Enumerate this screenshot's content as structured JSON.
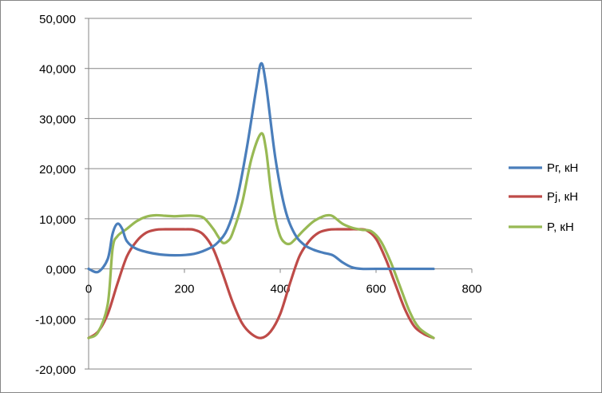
{
  "chart_data": {
    "type": "line",
    "title": "",
    "xlabel": "",
    "ylabel": "",
    "xlim": [
      0,
      800
    ],
    "ylim": [
      -20,
      50
    ],
    "x_ticks": [
      "0",
      "200",
      "400",
      "600",
      "800"
    ],
    "y_ticks": [
      "-20,000",
      "-10,000",
      "0,000",
      "10,000",
      "20,000",
      "30,000",
      "40,000",
      "50,000"
    ],
    "y_tick_values": [
      -20,
      -10,
      0,
      10,
      20,
      30,
      40,
      50
    ],
    "x_tick_values": [
      0,
      200,
      400,
      600,
      800
    ],
    "grid": {
      "horizontal": true,
      "vertical": false
    },
    "legend_position": "right",
    "series": [
      {
        "name": "Pг, кН",
        "color": "#4A7EBB",
        "points": [
          [
            0,
            0.0
          ],
          [
            20,
            -0.6
          ],
          [
            40,
            2.0
          ],
          [
            50,
            7.0
          ],
          [
            60,
            9.0
          ],
          [
            70,
            8.0
          ],
          [
            80,
            5.5
          ],
          [
            100,
            4.0
          ],
          [
            140,
            3.0
          ],
          [
            180,
            2.7
          ],
          [
            220,
            3.0
          ],
          [
            250,
            4.0
          ],
          [
            270,
            5.3
          ],
          [
            290,
            8.0
          ],
          [
            310,
            14.0
          ],
          [
            330,
            24.0
          ],
          [
            350,
            36.0
          ],
          [
            360,
            41.0
          ],
          [
            370,
            37.0
          ],
          [
            390,
            22.0
          ],
          [
            410,
            12.0
          ],
          [
            430,
            7.0
          ],
          [
            450,
            4.8
          ],
          [
            470,
            3.8
          ],
          [
            490,
            3.2
          ],
          [
            510,
            2.7
          ],
          [
            530,
            1.3
          ],
          [
            550,
            0.3
          ],
          [
            570,
            0.0
          ],
          [
            600,
            0.0
          ],
          [
            720,
            0.0
          ]
        ]
      },
      {
        "name": "Pj, кН",
        "color": "#BE4B48",
        "points": [
          [
            0,
            -13.8
          ],
          [
            20,
            -12.5
          ],
          [
            40,
            -9.0
          ],
          [
            60,
            -3.0
          ],
          [
            80,
            2.5
          ],
          [
            100,
            5.5
          ],
          [
            120,
            7.2
          ],
          [
            140,
            7.8
          ],
          [
            160,
            7.9
          ],
          [
            180,
            7.9
          ],
          [
            200,
            7.9
          ],
          [
            220,
            7.8
          ],
          [
            240,
            6.8
          ],
          [
            260,
            4.0
          ],
          [
            280,
            -1.0
          ],
          [
            300,
            -6.5
          ],
          [
            320,
            -10.8
          ],
          [
            340,
            -13.0
          ],
          [
            360,
            -13.8
          ],
          [
            380,
            -12.5
          ],
          [
            400,
            -9.0
          ],
          [
            420,
            -3.0
          ],
          [
            440,
            2.5
          ],
          [
            460,
            5.5
          ],
          [
            480,
            7.2
          ],
          [
            500,
            7.8
          ],
          [
            520,
            7.9
          ],
          [
            540,
            7.9
          ],
          [
            560,
            7.9
          ],
          [
            580,
            7.7
          ],
          [
            600,
            6.0
          ],
          [
            620,
            2.0
          ],
          [
            640,
            -3.0
          ],
          [
            660,
            -8.0
          ],
          [
            680,
            -11.5
          ],
          [
            700,
            -13.0
          ],
          [
            720,
            -13.8
          ]
        ]
      },
      {
        "name": "P, кН",
        "color": "#98B954",
        "points": [
          [
            0,
            -13.8
          ],
          [
            20,
            -12.6
          ],
          [
            40,
            -7.0
          ],
          [
            50,
            4.0
          ],
          [
            60,
            6.5
          ],
          [
            80,
            8.0
          ],
          [
            100,
            9.5
          ],
          [
            120,
            10.4
          ],
          [
            140,
            10.7
          ],
          [
            160,
            10.6
          ],
          [
            180,
            10.5
          ],
          [
            200,
            10.6
          ],
          [
            220,
            10.6
          ],
          [
            240,
            10.2
          ],
          [
            260,
            8.0
          ],
          [
            270,
            6.5
          ],
          [
            280,
            5.2
          ],
          [
            290,
            5.5
          ],
          [
            300,
            7.0
          ],
          [
            320,
            13.0
          ],
          [
            340,
            22.0
          ],
          [
            360,
            27.0
          ],
          [
            370,
            24.0
          ],
          [
            380,
            16.0
          ],
          [
            390,
            10.0
          ],
          [
            400,
            6.5
          ],
          [
            410,
            5.2
          ],
          [
            420,
            5.0
          ],
          [
            430,
            5.8
          ],
          [
            450,
            7.8
          ],
          [
            470,
            9.5
          ],
          [
            490,
            10.5
          ],
          [
            500,
            10.7
          ],
          [
            510,
            10.5
          ],
          [
            530,
            9.0
          ],
          [
            550,
            8.2
          ],
          [
            570,
            7.8
          ],
          [
            590,
            7.5
          ],
          [
            610,
            5.5
          ],
          [
            630,
            1.5
          ],
          [
            650,
            -3.5
          ],
          [
            670,
            -8.5
          ],
          [
            690,
            -11.8
          ],
          [
            720,
            -13.8
          ]
        ]
      }
    ]
  }
}
